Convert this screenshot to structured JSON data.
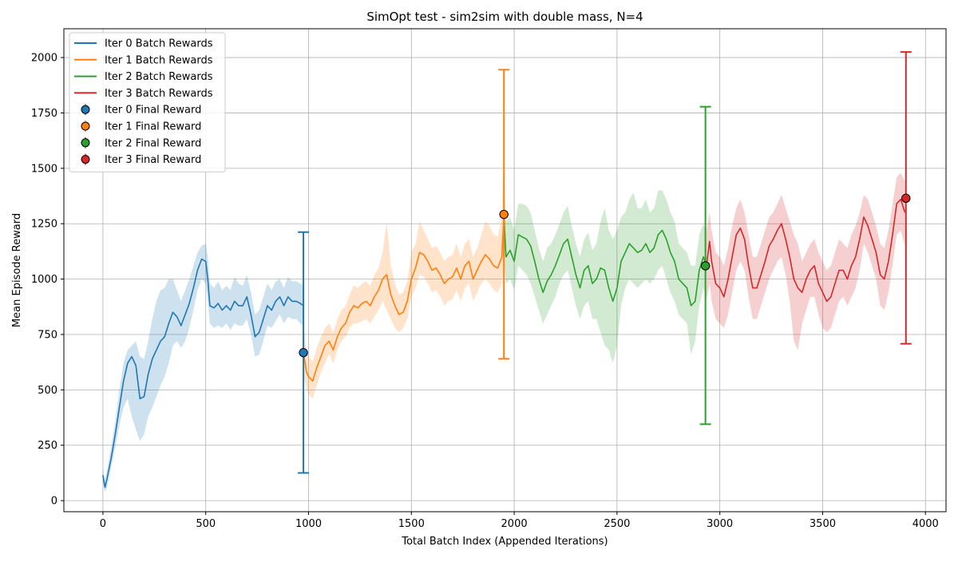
{
  "chart_data": {
    "type": "line",
    "title": "SimOpt test - sim2sim with double mass, N=4",
    "xlabel": "Total Batch Index (Appended Iterations)",
    "ylabel": "Mean Episode Reward",
    "xlim": [
      -190,
      4100
    ],
    "ylim": [
      -50,
      2130
    ],
    "xticks": [
      0,
      500,
      1000,
      1500,
      2000,
      2500,
      3000,
      3500,
      4000
    ],
    "yticks": [
      0,
      250,
      500,
      750,
      1000,
      1250,
      1500,
      1750,
      2000
    ],
    "grid": true,
    "legend_position": "upper-left",
    "series": [
      {
        "name": "Iter 0 Batch Rewards",
        "color": "#1f77b4",
        "x": [
          0,
          10,
          20,
          40,
          60,
          80,
          100,
          120,
          140,
          160,
          180,
          200,
          220,
          240,
          260,
          280,
          300,
          320,
          340,
          360,
          380,
          400,
          420,
          440,
          460,
          480,
          500,
          510,
          520,
          540,
          560,
          580,
          600,
          620,
          640,
          660,
          680,
          700,
          720,
          740,
          760,
          780,
          800,
          820,
          840,
          860,
          880,
          900,
          920,
          940,
          960,
          975
        ],
        "y": [
          115,
          60,
          100,
          190,
          300,
          420,
          540,
          620,
          650,
          610,
          460,
          470,
          570,
          640,
          680,
          720,
          740,
          800,
          850,
          830,
          790,
          840,
          890,
          960,
          1040,
          1090,
          1080,
          1000,
          880,
          870,
          890,
          860,
          880,
          860,
          900,
          880,
          880,
          920,
          840,
          740,
          760,
          820,
          880,
          860,
          900,
          920,
          880,
          920,
          900,
          900,
          890,
          880
        ],
        "band_lower": [
          80,
          40,
          60,
          150,
          240,
          340,
          420,
          460,
          380,
          320,
          270,
          300,
          380,
          420,
          470,
          520,
          560,
          620,
          700,
          720,
          690,
          720,
          780,
          860,
          950,
          1000,
          980,
          900,
          800,
          780,
          790,
          780,
          800,
          770,
          800,
          790,
          790,
          820,
          750,
          650,
          660,
          720,
          790,
          780,
          810,
          840,
          800,
          830,
          820,
          820,
          800,
          790
        ],
        "band_upper": [
          150,
          90,
          140,
          240,
          360,
          500,
          620,
          680,
          700,
          720,
          650,
          640,
          720,
          820,
          900,
          950,
          960,
          1000,
          1000,
          950,
          900,
          950,
          1000,
          1060,
          1120,
          1150,
          1160,
          1100,
          980,
          960,
          990,
          950,
          970,
          950,
          1010,
          980,
          970,
          1020,
          940,
          840,
          860,
          920,
          980,
          950,
          990,
          1000,
          960,
          1010,
          990,
          990,
          980,
          970
        ]
      },
      {
        "name": "Iter 1 Batch Rewards",
        "color": "#ff7f0e",
        "x": [
          975,
          990,
          1000,
          1020,
          1040,
          1060,
          1080,
          1100,
          1120,
          1140,
          1160,
          1180,
          1200,
          1220,
          1240,
          1260,
          1280,
          1300,
          1320,
          1340,
          1360,
          1380,
          1400,
          1420,
          1440,
          1460,
          1480,
          1500,
          1520,
          1540,
          1560,
          1580,
          1600,
          1620,
          1640,
          1660,
          1680,
          1700,
          1720,
          1740,
          1760,
          1780,
          1800,
          1820,
          1840,
          1860,
          1880,
          1900,
          1920,
          1940,
          1950
        ],
        "y": [
          670,
          580,
          560,
          540,
          600,
          650,
          700,
          720,
          680,
          740,
          780,
          800,
          850,
          880,
          870,
          890,
          900,
          880,
          920,
          950,
          1000,
          1020,
          930,
          880,
          840,
          850,
          900,
          1000,
          1050,
          1120,
          1110,
          1080,
          1040,
          1050,
          1020,
          980,
          1000,
          1010,
          1050,
          1000,
          1060,
          1080,
          1000,
          1040,
          1080,
          1110,
          1090,
          1060,
          1050,
          1100,
          1290
        ],
        "band_lower": [
          560,
          500,
          480,
          460,
          520,
          580,
          620,
          660,
          620,
          680,
          720,
          740,
          780,
          800,
          800,
          810,
          820,
          800,
          830,
          860,
          900,
          860,
          820,
          780,
          760,
          780,
          820,
          920,
          960,
          1020,
          1010,
          980,
          940,
          950,
          920,
          880,
          900,
          910,
          950,
          900,
          960,
          980,
          900,
          940,
          980,
          1000,
          980,
          950,
          940,
          980,
          1080
        ],
        "band_upper": [
          800,
          680,
          650,
          630,
          690,
          740,
          780,
          800,
          760,
          820,
          860,
          880,
          930,
          970,
          960,
          980,
          990,
          970,
          1020,
          1050,
          1120,
          1260,
          1060,
          980,
          930,
          940,
          990,
          1120,
          1160,
          1260,
          1220,
          1180,
          1140,
          1150,
          1120,
          1080,
          1100,
          1110,
          1160,
          1100,
          1160,
          1180,
          1100,
          1140,
          1200,
          1260,
          1240,
          1200,
          1190,
          1280,
          1560
        ]
      },
      {
        "name": "Iter 2 Batch Rewards",
        "color": "#2ca02c",
        "x": [
          1950,
          1960,
          1980,
          2000,
          2020,
          2040,
          2060,
          2080,
          2100,
          2120,
          2140,
          2160,
          2180,
          2200,
          2220,
          2240,
          2260,
          2280,
          2300,
          2320,
          2340,
          2360,
          2380,
          2400,
          2420,
          2440,
          2460,
          2480,
          2500,
          2520,
          2540,
          2560,
          2580,
          2600,
          2620,
          2640,
          2660,
          2680,
          2700,
          2720,
          2740,
          2760,
          2780,
          2800,
          2820,
          2840,
          2860,
          2880,
          2900,
          2920,
          2935
        ],
        "y": [
          1290,
          1100,
          1130,
          1080,
          1200,
          1190,
          1180,
          1150,
          1080,
          1000,
          940,
          990,
          1020,
          1060,
          1110,
          1160,
          1180,
          1100,
          1020,
          960,
          1040,
          1060,
          980,
          1000,
          1050,
          1040,
          960,
          900,
          960,
          1080,
          1120,
          1160,
          1140,
          1120,
          1130,
          1160,
          1120,
          1140,
          1200,
          1220,
          1180,
          1120,
          1080,
          1000,
          980,
          960,
          880,
          900,
          1040,
          1100,
          1060
        ],
        "band_lower": [
          1080,
          980,
          1000,
          950,
          1060,
          1040,
          1020,
          980,
          920,
          860,
          800,
          840,
          880,
          920,
          980,
          1020,
          1040,
          960,
          880,
          820,
          880,
          900,
          820,
          820,
          760,
          700,
          680,
          620,
          700,
          880,
          960,
          1000,
          980,
          960,
          980,
          1000,
          980,
          1000,
          1040,
          1060,
          1000,
          940,
          900,
          840,
          820,
          800,
          660,
          720,
          880,
          960,
          920
        ],
        "band_upper": [
          1450,
          1260,
          1280,
          1220,
          1340,
          1340,
          1330,
          1300,
          1220,
          1140,
          1080,
          1140,
          1160,
          1200,
          1250,
          1300,
          1330,
          1240,
          1160,
          1100,
          1180,
          1210,
          1130,
          1160,
          1260,
          1320,
          1220,
          1180,
          1220,
          1280,
          1300,
          1360,
          1390,
          1320,
          1320,
          1360,
          1300,
          1320,
          1400,
          1400,
          1360,
          1300,
          1260,
          1160,
          1140,
          1120,
          1060,
          1060,
          1200,
          1250,
          1200
        ]
      },
      {
        "name": "Iter 3 Batch Rewards",
        "color": "#d62728",
        "x": [
          2935,
          2950,
          2960,
          2980,
          3000,
          3020,
          3040,
          3060,
          3080,
          3100,
          3120,
          3140,
          3160,
          3180,
          3200,
          3220,
          3240,
          3260,
          3280,
          3300,
          3320,
          3340,
          3360,
          3380,
          3400,
          3420,
          3440,
          3460,
          3480,
          3500,
          3520,
          3540,
          3560,
          3580,
          3600,
          3620,
          3640,
          3660,
          3680,
          3700,
          3720,
          3740,
          3760,
          3780,
          3800,
          3820,
          3840,
          3860,
          3880,
          3900
        ],
        "y": [
          1060,
          1170,
          1080,
          980,
          960,
          920,
          1000,
          1100,
          1200,
          1230,
          1180,
          1060,
          960,
          960,
          1020,
          1080,
          1150,
          1180,
          1220,
          1250,
          1180,
          1100,
          1000,
          960,
          940,
          1000,
          1040,
          1060,
          980,
          940,
          900,
          920,
          980,
          1040,
          1040,
          1000,
          1060,
          1100,
          1180,
          1280,
          1240,
          1180,
          1120,
          1020,
          1000,
          1080,
          1200,
          1340,
          1360,
          1300
        ],
        "band_lower": [
          900,
          980,
          900,
          820,
          800,
          780,
          840,
          940,
          1040,
          1080,
          1040,
          920,
          820,
          820,
          880,
          940,
          1000,
          1040,
          1080,
          1100,
          1020,
          900,
          720,
          680,
          800,
          860,
          920,
          920,
          840,
          780,
          760,
          780,
          840,
          900,
          920,
          880,
          920,
          960,
          1040,
          1160,
          1120,
          1060,
          1000,
          880,
          860,
          940,
          1060,
          1200,
          1220,
          1150
        ],
        "band_upper": [
          1220,
          1300,
          1220,
          1120,
          1100,
          1060,
          1140,
          1240,
          1320,
          1360,
          1300,
          1200,
          1100,
          1100,
          1160,
          1220,
          1280,
          1300,
          1340,
          1380,
          1320,
          1260,
          1200,
          1160,
          1080,
          1120,
          1160,
          1180,
          1120,
          1080,
          1040,
          1060,
          1120,
          1180,
          1160,
          1140,
          1200,
          1240,
          1300,
          1380,
          1360,
          1300,
          1240,
          1160,
          1140,
          1220,
          1340,
          1460,
          1480,
          1440
        ]
      }
    ],
    "final_rewards": [
      {
        "name": "Iter 0 Final Reward",
        "color": "#1f77b4",
        "x": 975,
        "y": 668,
        "err_low": 125,
        "err_high": 1212
      },
      {
        "name": "Iter 1 Final Reward",
        "color": "#ff7f0e",
        "x": 1950,
        "y": 1292,
        "err_low": 640,
        "err_high": 1945
      },
      {
        "name": "Iter 2 Final Reward",
        "color": "#2ca02c",
        "x": 2930,
        "y": 1060,
        "err_low": 345,
        "err_high": 1778
      },
      {
        "name": "Iter 3 Final Reward",
        "color": "#d62728",
        "x": 3905,
        "y": 1365,
        "err_low": 708,
        "err_high": 2025
      }
    ]
  }
}
